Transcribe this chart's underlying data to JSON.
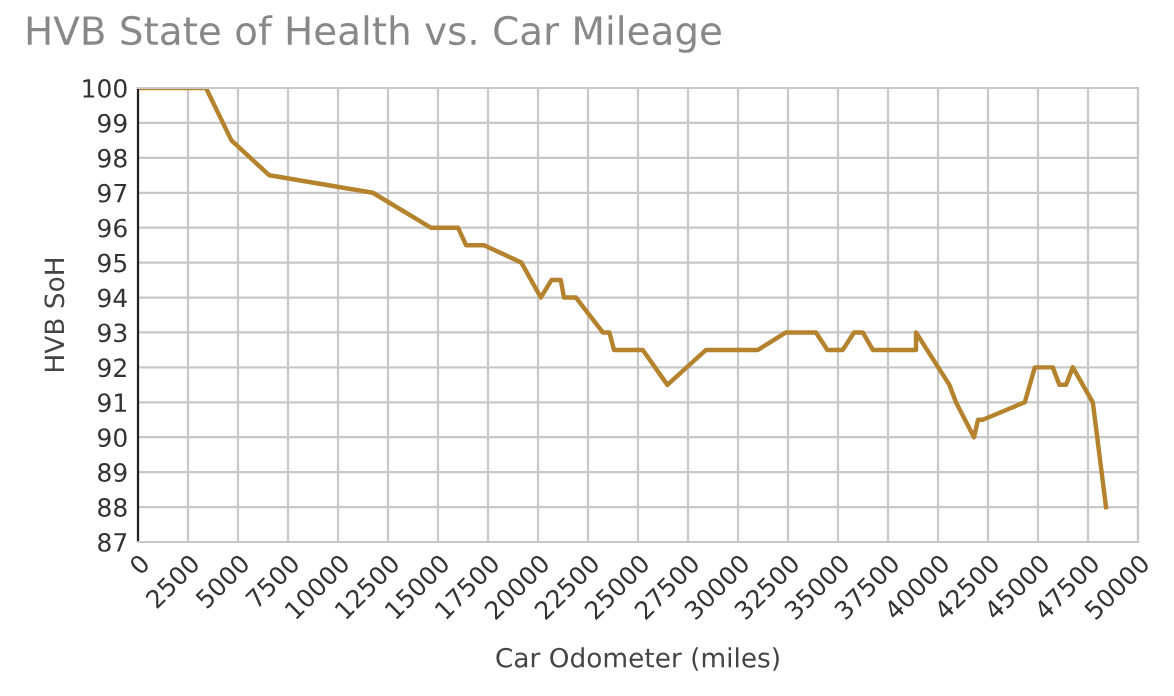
{
  "chart_data": {
    "type": "line",
    "title": "HVB State of Health vs. Car Mileage",
    "xlabel": "Car Odometer (miles)",
    "ylabel": "HVB SoH",
    "x": [
      0,
      3400,
      4670,
      6570,
      11740,
      14640,
      16000,
      16400,
      17300,
      19170,
      20140,
      20670,
      21140,
      21300,
      21900,
      23240,
      23570,
      23800,
      25240,
      26470,
      28400,
      31000,
      32400,
      33900,
      34470,
      35240,
      35800,
      36240,
      36740,
      38900,
      38900,
      40570,
      40900,
      41800,
      42000,
      42240,
      44340,
      44840,
      45740,
      46070,
      46400,
      46740,
      47740,
      48400
    ],
    "series": [
      {
        "color": "#b5832e",
        "values": [
          100,
          100,
          98.5,
          97.5,
          97,
          96,
          96,
          95.5,
          95.5,
          95,
          94,
          94.5,
          94.5,
          94,
          94,
          93,
          93,
          92.5,
          92.5,
          91.5,
          92.5,
          92.5,
          93,
          93,
          92.5,
          92.5,
          93,
          93,
          92.5,
          92.5,
          93,
          91.5,
          91,
          90,
          90.5,
          90.5,
          91,
          92,
          92,
          91.5,
          91.5,
          92,
          91,
          88
        ]
      }
    ],
    "xlim": [
      0,
      50000
    ],
    "xticks": [
      0,
      2500,
      5000,
      7500,
      10000,
      12500,
      15000,
      17500,
      20000,
      22500,
      25000,
      27500,
      30000,
      32500,
      35000,
      37500,
      40000,
      42500,
      45000,
      47500,
      50000
    ],
    "ylim": [
      87,
      100
    ],
    "yticks": [
      87,
      88,
      89,
      90,
      91,
      92,
      93,
      94,
      95,
      96,
      97,
      98,
      99,
      100
    ],
    "grid": true,
    "legend": false,
    "marker": "none",
    "line_style": "solid"
  }
}
